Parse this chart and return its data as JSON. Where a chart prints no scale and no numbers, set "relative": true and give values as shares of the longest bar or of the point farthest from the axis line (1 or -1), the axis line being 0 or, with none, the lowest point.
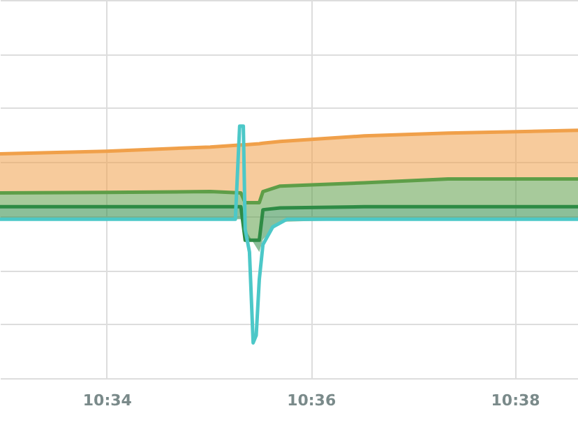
{
  "chart_data": {
    "type": "line",
    "relative": true,
    "grid": true,
    "marker": "none",
    "line_style": "solid",
    "xlim": [
      10.5493,
      10.6436
    ],
    "xticks": [
      {
        "value": 10.5667,
        "label": "10:34"
      },
      {
        "value": 10.6,
        "label": "10:36"
      },
      {
        "value": 10.6333,
        "label": "10:38"
      }
    ],
    "series": [
      {
        "color": "#f0a04a",
        "x": [
          10.5493,
          10.5667,
          10.5836,
          10.5886,
          10.5893,
          10.5916,
          10.5922,
          10.595,
          10.6087,
          10.6224,
          10.6436
        ],
        "values": [
          0.89,
          0.9,
          0.917,
          0.925,
          0.926,
          0.93,
          0.932,
          0.939,
          0.961,
          0.972,
          0.983
        ],
        "lower": [
          0.735,
          0.737,
          0.74,
          0.735,
          0.696,
          0.696,
          0.74,
          0.762,
          0.775,
          0.79,
          0.79
        ],
        "upper": [
          0.89,
          0.9,
          0.917,
          0.925,
          0.926,
          0.93,
          0.932,
          0.939,
          0.961,
          0.972,
          0.983
        ]
      },
      {
        "color": "#5e9e48",
        "x": [
          10.5493,
          10.5667,
          10.5836,
          10.5886,
          10.5893,
          10.5916,
          10.5922,
          10.595,
          10.6087,
          10.6224,
          10.6436
        ],
        "values": [
          0.735,
          0.737,
          0.74,
          0.735,
          0.696,
          0.696,
          0.74,
          0.762,
          0.775,
          0.79,
          0.79
        ],
        "lower": [
          0.68,
          0.68,
          0.68,
          0.68,
          0.547,
          0.547,
          0.668,
          0.675,
          0.68,
          0.68,
          0.68
        ],
        "upper": [
          0.735,
          0.737,
          0.74,
          0.735,
          0.696,
          0.696,
          0.74,
          0.762,
          0.775,
          0.79,
          0.79
        ]
      },
      {
        "color": "#2e8b45",
        "x": [
          10.5493,
          10.5667,
          10.5836,
          10.5886,
          10.5893,
          10.5916,
          10.5922,
          10.595,
          10.6087,
          10.6224,
          10.6436
        ],
        "values": [
          0.68,
          0.68,
          0.68,
          0.68,
          0.547,
          0.547,
          0.668,
          0.675,
          0.68,
          0.68,
          0.68
        ],
        "lower": [
          0.63,
          0.63,
          0.63,
          0.63,
          0.59,
          0.5,
          0.55,
          0.62,
          0.63,
          0.63,
          0.63
        ],
        "upper": [
          0.68,
          0.68,
          0.68,
          0.68,
          0.547,
          0.547,
          0.668,
          0.675,
          0.68,
          0.68,
          0.68
        ]
      },
      {
        "color": "#4cc8c8",
        "x": [
          10.5493,
          10.5667,
          10.5836,
          10.5877,
          10.5884,
          10.589,
          10.5893,
          10.59,
          10.5906,
          10.5911,
          10.5916,
          10.5922,
          10.5938,
          10.5961,
          10.6178,
          10.6436
        ],
        "values": [
          0.63,
          0.63,
          0.63,
          0.63,
          1,
          1,
          0.59,
          0.5,
          0.14,
          0.17,
          0.39,
          0.53,
          0.6,
          0.63,
          0.63,
          0.63
        ]
      }
    ]
  }
}
